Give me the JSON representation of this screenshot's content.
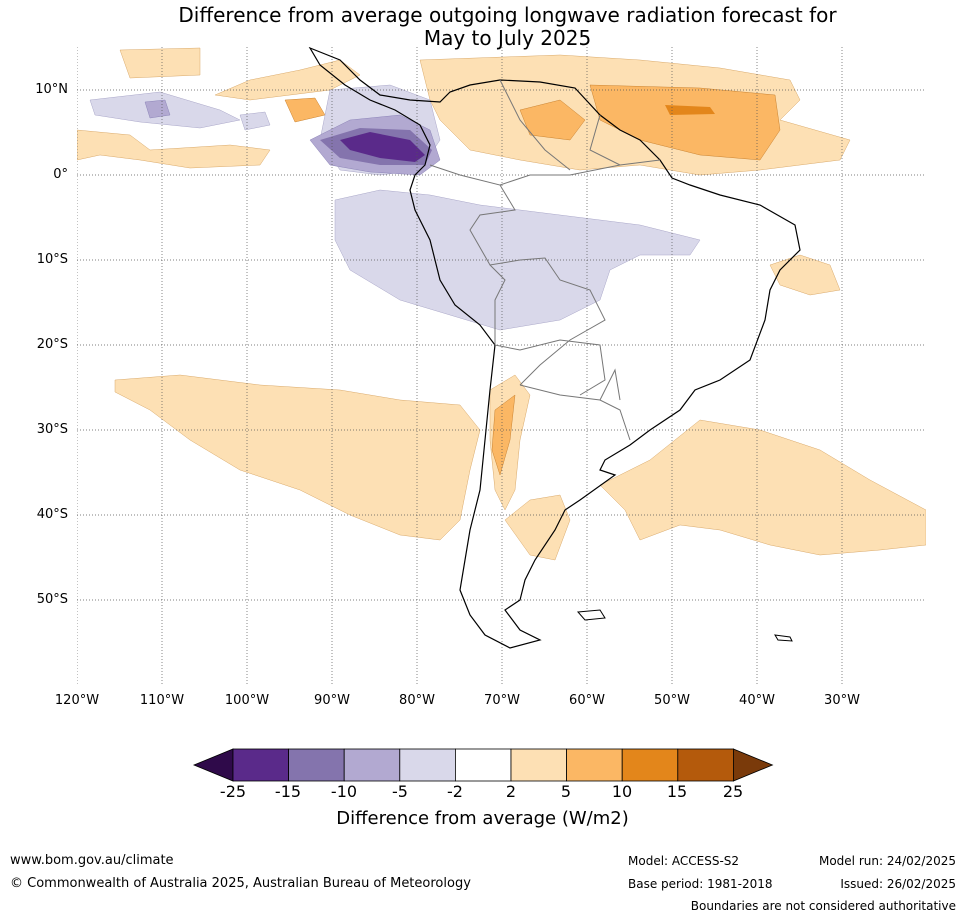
{
  "title_line1": "Difference from average outgoing longwave radiation forecast for",
  "title_line2": "May to July 2025",
  "lat_labels": [
    "10°N",
    "0°",
    "10°S",
    "20°S",
    "30°S",
    "40°S",
    "50°S"
  ],
  "lon_labels": [
    "120°W",
    "110°W",
    "100°W",
    "90°W",
    "80°W",
    "70°W",
    "60°W",
    "50°W",
    "40°W",
    "30°W"
  ],
  "colorbar": {
    "ticks": [
      "-25",
      "-15",
      "-10",
      "-5",
      "-2",
      "2",
      "5",
      "10",
      "15",
      "25"
    ],
    "colors": [
      "#5a2a8a",
      "#8474ad",
      "#b2a9d1",
      "#d9d8ea",
      "#ffffff",
      "#fde0b4",
      "#fbb764",
      "#e3861b",
      "#b45a0c"
    ],
    "under_color": "#2f0a4a",
    "over_color": "#7a3a0a",
    "label": "Difference from average (W/m2)"
  },
  "footer": {
    "website": "www.bom.gov.au/climate",
    "copyright": "© Commonwealth of Australia 2025, Australian Bureau of Meteorology",
    "model": "Model: ACCESS-S2",
    "base_period": "Base period: 1981-2018",
    "model_run": "Model run: 24/02/2025",
    "issued": "Issued: 26/02/2025",
    "disclaimer": "Boundaries are not considered authoritative"
  }
}
